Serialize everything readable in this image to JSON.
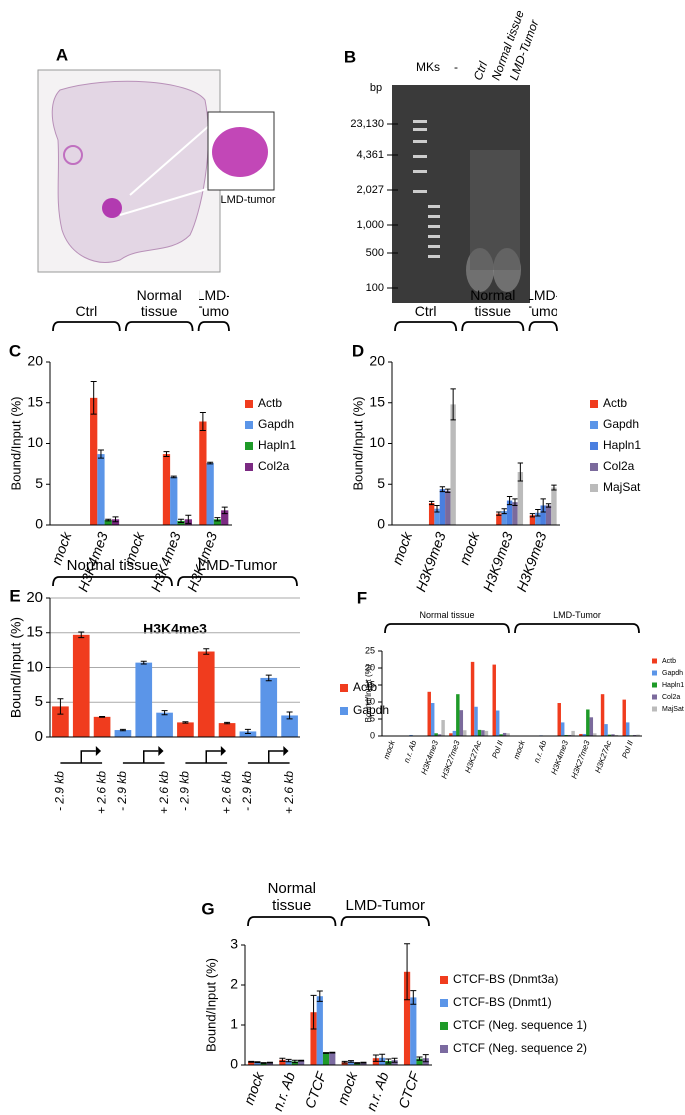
{
  "panel_a": {
    "label": "A",
    "annotation": "LMD-tumor"
  },
  "panel_b": {
    "label": "B",
    "unit": "bp",
    "lanes": [
      "MKs",
      "-",
      "Ctrl",
      "Normal tissue",
      "LMD-Tumor"
    ],
    "markers": [
      "23,130",
      "4,361",
      "2,027",
      "1,000",
      "500",
      "100"
    ]
  },
  "chart_data": [
    {
      "type": "bar",
      "panel": "C",
      "y_label": "Bound/Input (%)",
      "groups": [
        {
          "label": "Ctrl",
          "categories": [
            "mock",
            "H3K4me3"
          ]
        },
        {
          "label": "Normal tissue",
          "categories": [
            "mock",
            "H3K4me3"
          ]
        },
        {
          "label": "LMD-Tumor",
          "categories": [
            "H3K4me3"
          ]
        }
      ],
      "series": [
        {
          "name": "Actb",
          "color": "#f03c1e",
          "values": [
            0,
            15.6,
            0,
            8.7,
            12.7
          ],
          "errors": [
            0,
            2,
            0,
            0.3,
            1.1
          ]
        },
        {
          "name": "Gapdh",
          "color": "#5b95e8",
          "values": [
            0,
            8.7,
            0,
            5.9,
            7.6
          ],
          "errors": [
            0,
            0.5,
            0,
            0.1,
            0.1
          ]
        },
        {
          "name": "Hapln1",
          "color": "#1e9a28",
          "values": [
            0,
            0.6,
            0,
            0.5,
            0.7
          ],
          "errors": [
            0,
            0.1,
            0,
            0.2,
            0.2
          ]
        },
        {
          "name": "Col2a",
          "color": "#7b2a82",
          "values": [
            0,
            0.7,
            0,
            0.7,
            1.8
          ],
          "errors": [
            0,
            0.3,
            0,
            0.5,
            0.4
          ]
        }
      ],
      "ylim": [
        0,
        20
      ],
      "yticks": [
        0,
        5,
        10,
        15,
        20
      ],
      "grid": false
    },
    {
      "type": "bar",
      "panel": "D",
      "y_label": "Bound/Input (%)",
      "groups": [
        {
          "label": "Ctrl",
          "categories": [
            "mock",
            "H3K9me3"
          ]
        },
        {
          "label": "Normal tissue",
          "categories": [
            "mock",
            "H3K9me3"
          ]
        },
        {
          "label": "LMD-Tumor",
          "categories": [
            "H3K9me3"
          ]
        }
      ],
      "series": [
        {
          "name": "Actb",
          "color": "#f03c1e",
          "values": [
            0,
            2.7,
            0,
            1.4,
            1.2
          ],
          "errors": [
            0,
            0.2,
            0,
            0.2,
            0.2
          ]
        },
        {
          "name": "Gapdh",
          "color": "#5b95e8",
          "values": [
            0,
            2.0,
            0,
            1.7,
            1.5
          ],
          "errors": [
            0,
            0.4,
            0,
            0.3,
            0.4
          ]
        },
        {
          "name": "Hapln1",
          "color": "#4a7fe0",
          "values": [
            0,
            4.4,
            0,
            3.0,
            2.4
          ],
          "errors": [
            0,
            0.3,
            0,
            0.5,
            0.8
          ]
        },
        {
          "name": "Col2a",
          "color": "#7b6a9c",
          "values": [
            0,
            4.2,
            0,
            2.8,
            2.4
          ],
          "errors": [
            0,
            0.2,
            0,
            0.4,
            0.2
          ]
        },
        {
          "name": "MajSat",
          "color": "#bbbbbb",
          "values": [
            0,
            14.8,
            0,
            6.5,
            4.6
          ],
          "errors": [
            0,
            1.9,
            0,
            1.1,
            0.3
          ]
        }
      ],
      "ylim": [
        0,
        20
      ],
      "yticks": [
        0,
        5,
        10,
        15,
        20
      ],
      "grid": false
    },
    {
      "type": "bar",
      "panel": "E",
      "title": "H3K4me3",
      "y_label": "Bound/Input (%)",
      "groups": [
        {
          "label": "Normal tissue",
          "categories": [
            "- 2.9 kb",
            null,
            "+ 2.6 kb",
            "- 2.9 kb",
            null,
            "+ 2.6 kb"
          ]
        },
        {
          "label": "LMD-Tumor",
          "categories": [
            "- 2.9 kb",
            null,
            "+ 2.6 kb",
            "- 2.9 kb",
            null,
            "+ 2.6 kb"
          ]
        }
      ],
      "series": [
        {
          "name": "Actb",
          "color": "#f03c1e",
          "values": [
            4.4,
            14.7,
            2.9,
            null,
            null,
            null,
            2.1,
            12.3,
            2.0,
            null,
            null,
            null
          ],
          "errors": [
            1.1,
            0.4,
            0.05,
            null,
            null,
            null,
            0.1,
            0.4,
            0.1,
            null,
            null,
            null
          ]
        },
        {
          "name": "Gapdh",
          "color": "#5b95e8",
          "values": [
            null,
            null,
            null,
            1.0,
            10.7,
            3.5,
            null,
            null,
            null,
            0.8,
            8.5,
            3.1
          ],
          "errors": [
            null,
            null,
            null,
            0.1,
            0.2,
            0.3,
            null,
            null,
            null,
            0.3,
            0.4,
            0.5
          ]
        }
      ],
      "ylim": [
        0,
        20
      ],
      "yticks": [
        0,
        5,
        10,
        15,
        20
      ],
      "grid": true
    },
    {
      "type": "bar",
      "panel": "F",
      "y_label": "Bound/Input (%)",
      "groups": [
        {
          "label": "Normal tissue",
          "categories": [
            "mock",
            "n.r. Ab",
            "H3K4me3",
            "H3K27me3",
            "H3K27Ac",
            "Pol II"
          ]
        },
        {
          "label": "LMD-Tumor",
          "categories": [
            "mock",
            "n.r. Ab",
            "H3K4me3",
            "H3K27me3",
            "H3K27Ac",
            "Pol II"
          ]
        }
      ],
      "series": [
        {
          "name": "Actb",
          "color": "#f03c1e",
          "values": [
            0.1,
            0.1,
            13,
            0.8,
            21.8,
            21,
            0.1,
            0.1,
            9.7,
            0.6,
            12.3,
            10.7
          ]
        },
        {
          "name": "Gapdh",
          "color": "#5b95e8",
          "values": [
            0.1,
            0.3,
            9.7,
            1.5,
            8.6,
            7.5,
            0.1,
            0.2,
            4.0,
            0.6,
            3.5,
            4.0
          ]
        },
        {
          "name": "Hapln1",
          "color": "#1e9a28",
          "values": [
            0,
            0.1,
            0.8,
            12.3,
            1.8,
            0.5,
            0,
            0.1,
            0.3,
            7.8,
            0.4,
            0.2
          ]
        },
        {
          "name": "Col2a",
          "color": "#7b6a9c",
          "values": [
            0,
            0.1,
            0.5,
            7.6,
            1.7,
            0.9,
            0,
            0.1,
            0.3,
            5.5,
            0.5,
            0.3
          ]
        },
        {
          "name": "MajSat",
          "color": "#bbbbbb",
          "values": [
            0,
            0.1,
            4.7,
            1.7,
            1.5,
            0.8,
            0,
            0.1,
            1.5,
            0.8,
            0.3,
            0.4
          ]
        }
      ],
      "ylim": [
        0,
        25
      ],
      "yticks": [
        0,
        5,
        10,
        15,
        20,
        25
      ],
      "grid": false
    },
    {
      "type": "bar",
      "panel": "G",
      "y_label": "Bound/Input (%)",
      "groups": [
        {
          "label": "Normal tissue",
          "categories": [
            "mock",
            "n.r. Ab",
            "CTCF"
          ]
        },
        {
          "label": "LMD-Tumor",
          "categories": [
            "mock",
            "n.r. Ab",
            "CTCF"
          ]
        }
      ],
      "series": [
        {
          "name": "CTCF-BS (Dnmt3a)",
          "color": "#f03c1e",
          "values": [
            0.08,
            0.13,
            1.32,
            0.07,
            0.17,
            2.33
          ],
          "errors": [
            0.01,
            0.04,
            0.42,
            0.02,
            0.08,
            0.7
          ]
        },
        {
          "name": "CTCF-BS (Dnmt1)",
          "color": "#5b95e8",
          "values": [
            0.07,
            0.11,
            1.72,
            0.09,
            0.18,
            1.69
          ],
          "errors": [
            0.01,
            0.03,
            0.13,
            0.02,
            0.09,
            0.17
          ]
        },
        {
          "name": "CTCF (Neg. sequence 1)",
          "color": "#1e9a28",
          "values": [
            0.05,
            0.09,
            0.3,
            0.05,
            0.1,
            0.16
          ],
          "errors": [
            0.01,
            0.03,
            0.01,
            0.01,
            0.05,
            0.04
          ]
        },
        {
          "name": "CTCF (Neg. sequence 2)",
          "color": "#7b6aa0",
          "values": [
            0.06,
            0.11,
            0.31,
            0.06,
            0.12,
            0.17
          ],
          "errors": [
            0.01,
            0.01,
            0.01,
            0.01,
            0.05,
            0.09
          ]
        }
      ],
      "ylim": [
        0,
        3
      ],
      "yticks": [
        0,
        1,
        2,
        3
      ],
      "grid": false
    }
  ]
}
